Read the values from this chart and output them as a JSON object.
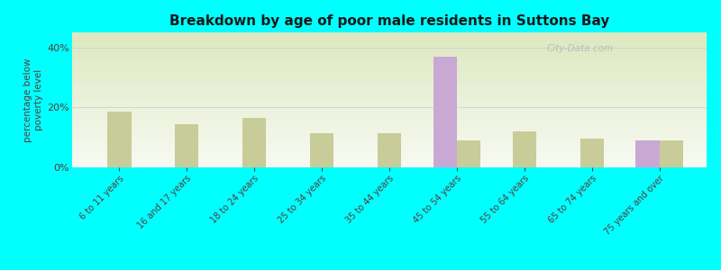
{
  "title": "Breakdown by age of poor male residents in Suttons Bay",
  "ylabel": "percentage below\npoverty level",
  "background_color": "#00FFFF",
  "plot_bg_top": "#dde8c0",
  "plot_bg_bottom": "#f8faf2",
  "categories": [
    "6 to 11 years",
    "16 and 17 years",
    "18 to 24 years",
    "25 to 34 years",
    "35 to 44 years",
    "45 to 54 years",
    "55 to 64 years",
    "65 to 74 years",
    "75 years and over"
  ],
  "suttons_bay": [
    0,
    0,
    0,
    0,
    0,
    37.0,
    0,
    0,
    9.0
  ],
  "michigan": [
    18.5,
    14.5,
    16.5,
    11.5,
    11.5,
    9.0,
    12.0,
    9.5,
    9.0
  ],
  "suttons_bay_color": "#c9a8d4",
  "michigan_color": "#c8cc99",
  "title_color": "#1a1a1a",
  "label_color": "#5a3a3a",
  "ytick_labels": [
    "0%",
    "20%",
    "40%"
  ],
  "ytick_values": [
    0,
    20,
    40
  ],
  "ylim": [
    0,
    45
  ],
  "bar_width": 0.35,
  "watermark": "City-Data.com"
}
